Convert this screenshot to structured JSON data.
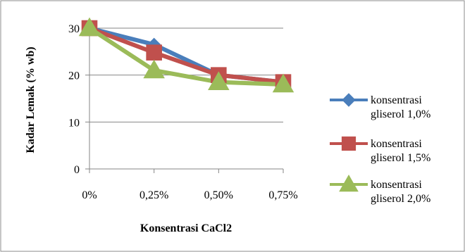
{
  "chart_data": {
    "type": "line",
    "title": "",
    "xlabel": "Konsentrasi CaCl2",
    "ylabel": "Kadar Lemak (% wb)",
    "categories": [
      "0%",
      "0,25%",
      "0,50%",
      "0,75%"
    ],
    "ylim": [
      0,
      30
    ],
    "yticks": [
      0,
      10,
      20,
      30
    ],
    "grid": "horizontal",
    "legend_position": "right",
    "series": [
      {
        "name_line1": "konsentrasi",
        "name_line2": "gliserol 1,0%",
        "values": [
          30,
          26.5,
          20,
          18.5
        ],
        "color": "#4A7EBB",
        "marker": "diamond"
      },
      {
        "name_line1": "konsentrasi",
        "name_line2": "gliserol 1,5%",
        "values": [
          30,
          24.8,
          20,
          18.5
        ],
        "color": "#C0504D",
        "marker": "square"
      },
      {
        "name_line1": "konsentrasi",
        "name_line2": "gliserol 2,0%",
        "values": [
          30,
          21,
          18.5,
          18
        ],
        "color": "#9BBB59",
        "marker": "triangle"
      }
    ]
  }
}
